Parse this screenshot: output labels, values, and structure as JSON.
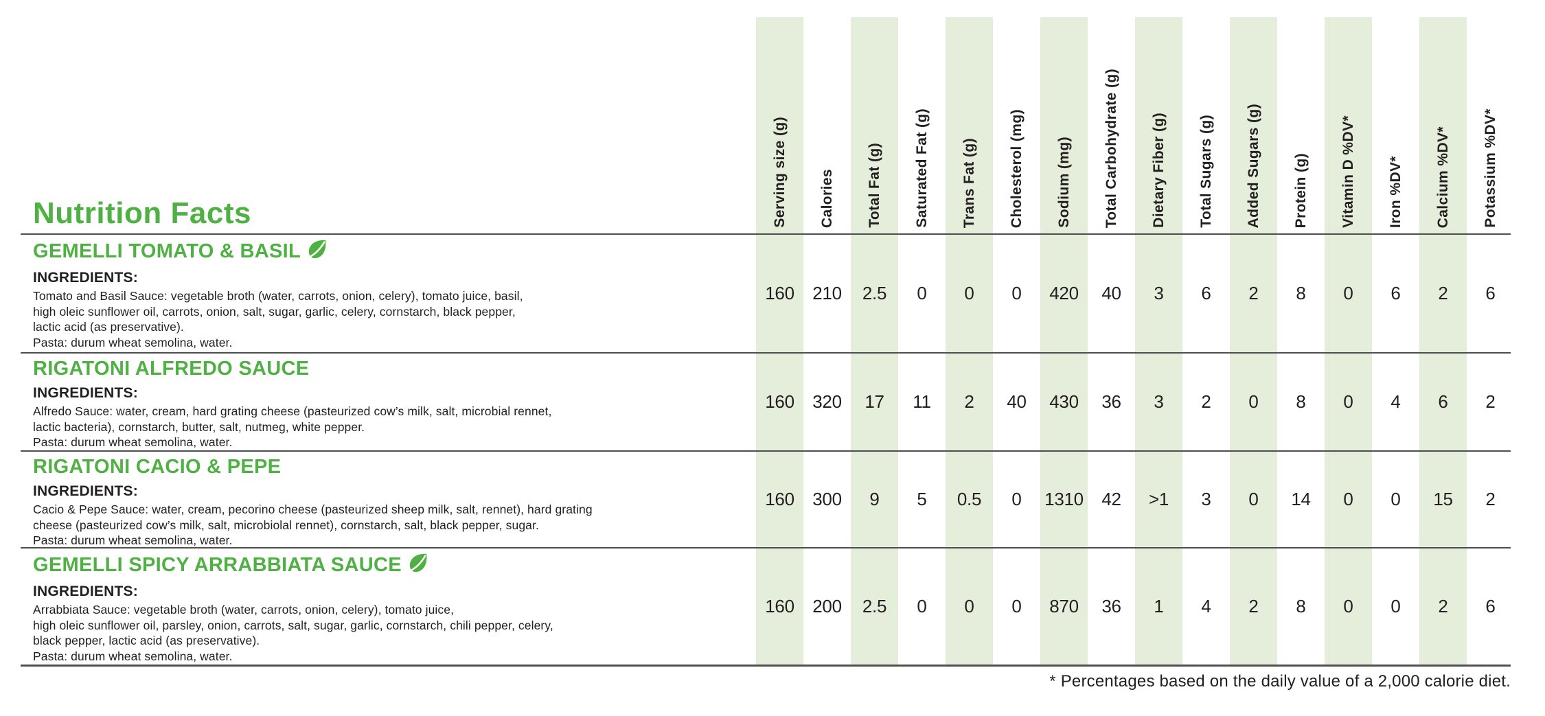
{
  "title": "Nutrition Facts",
  "footnote": "* Percentages based on the daily value of a 2,000 calorie diet.",
  "ingredients_label": "INGREDIENTS:",
  "colors": {
    "accent_green": "#4fb043",
    "stripe_green": "#e5eedb",
    "text_black": "#231f20",
    "rule_gray": "#4e4e50"
  },
  "icons": {
    "leaf": "leaf-icon"
  },
  "table": {
    "columns": [
      {
        "label": "Serving size (g)",
        "shaded": true
      },
      {
        "label": "Calories",
        "shaded": false
      },
      {
        "label": "Total Fat (g)",
        "shaded": true
      },
      {
        "label": "Saturated Fat (g)",
        "shaded": false
      },
      {
        "label": "Trans Fat (g)",
        "shaded": true
      },
      {
        "label": "Cholesterol (mg)",
        "shaded": false
      },
      {
        "label": "Sodium (mg)",
        "shaded": true
      },
      {
        "label": "Total Carbohydrate (g)",
        "shaded": false
      },
      {
        "label": "Dietary Fiber (g)",
        "shaded": true
      },
      {
        "label": "Total Sugars (g)",
        "shaded": false
      },
      {
        "label": "Added Sugars (g)",
        "shaded": true
      },
      {
        "label": "Protein (g)",
        "shaded": false
      },
      {
        "label": "Vitamin D %DV*",
        "shaded": true
      },
      {
        "label": "Iron %DV*",
        "shaded": false
      },
      {
        "label": "Calcium %DV*",
        "shaded": true
      },
      {
        "label": "Potassium %DV*",
        "shaded": false
      }
    ]
  },
  "products": [
    {
      "name": "GEMELLI TOMATO & BASIL",
      "plant_based": true,
      "ingredients": "Tomato and Basil Sauce: vegetable broth (water, carrots, onion, celery), tomato juice, basil,\nhigh oleic sunflower oil, carrots, onion, salt, sugar, garlic, celery, cornstarch, black pepper,\nlactic acid (as preservative).\nPasta: durum wheat semolina, water.",
      "values": [
        "160",
        "210",
        "2.5",
        "0",
        "0",
        "0",
        "420",
        "40",
        "3",
        "6",
        "2",
        "8",
        "0",
        "6",
        "2",
        "6"
      ]
    },
    {
      "name": "RIGATONI ALFREDO SAUCE",
      "plant_based": false,
      "ingredients": "Alfredo Sauce: water, cream, hard grating cheese (pasteurized cow’s milk, salt, microbial rennet,\nlactic bacteria), cornstarch, butter, salt, nutmeg, white pepper.\nPasta: durum wheat semolina, water.",
      "values": [
        "160",
        "320",
        "17",
        "11",
        "2",
        "40",
        "430",
        "36",
        "3",
        "2",
        "0",
        "8",
        "0",
        "4",
        "6",
        "2"
      ]
    },
    {
      "name": "RIGATONI CACIO & PEPE",
      "plant_based": false,
      "ingredients": "Cacio & Pepe Sauce: water, cream, pecorino cheese (pasteurized sheep milk, salt, rennet), hard grating\ncheese (pasteurized cow’s milk, salt, microbiolal rennet), cornstarch, salt, black pepper, sugar.\nPasta: durum wheat semolina, water.",
      "values": [
        "160",
        "300",
        "9",
        "5",
        "0.5",
        "0",
        "1310",
        "42",
        ">1",
        "3",
        "0",
        "14",
        "0",
        "0",
        "15",
        "2"
      ]
    },
    {
      "name": "GEMELLI SPICY ARRABBIATA SAUCE",
      "plant_based": true,
      "ingredients": "Arrabbiata Sauce: vegetable broth (water, carrots, onion, celery), tomato juice,\nhigh oleic sunflower oil, parsley, onion, carrots, salt, sugar, garlic, cornstarch, chili pepper, celery,\nblack pepper, lactic acid (as preservative).\nPasta: durum wheat semolina, water.",
      "values": [
        "160",
        "200",
        "2.5",
        "0",
        "0",
        "0",
        "870",
        "36",
        "1",
        "4",
        "2",
        "8",
        "0",
        "0",
        "2",
        "6"
      ]
    }
  ]
}
